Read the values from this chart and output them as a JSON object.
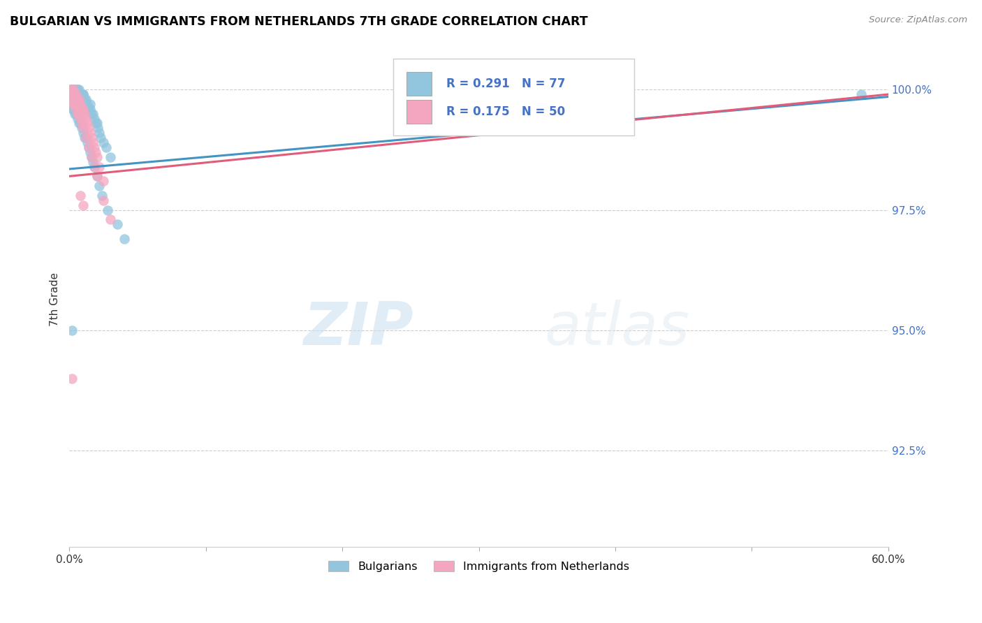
{
  "title": "BULGARIAN VS IMMIGRANTS FROM NETHERLANDS 7TH GRADE CORRELATION CHART",
  "source": "Source: ZipAtlas.com",
  "ylabel": "7th Grade",
  "ylabel_right_labels": [
    "100.0%",
    "97.5%",
    "95.0%",
    "92.5%"
  ],
  "ylabel_right_values": [
    1.0,
    0.975,
    0.95,
    0.925
  ],
  "xmin": 0.0,
  "xmax": 0.6,
  "ymin": 0.905,
  "ymax": 1.008,
  "blue_R": 0.291,
  "blue_N": 77,
  "pink_R": 0.175,
  "pink_N": 50,
  "blue_color": "#92c5de",
  "pink_color": "#f4a6c0",
  "blue_line_color": "#4393c3",
  "pink_line_color": "#e05c7a",
  "watermark_zip": "ZIP",
  "watermark_atlas": "atlas",
  "legend_label_blue": "Bulgarians",
  "legend_label_pink": "Immigrants from Netherlands",
  "blue_scatter_x": [
    0.001,
    0.001,
    0.002,
    0.002,
    0.002,
    0.003,
    0.003,
    0.003,
    0.003,
    0.004,
    0.004,
    0.004,
    0.005,
    0.005,
    0.005,
    0.006,
    0.006,
    0.006,
    0.007,
    0.007,
    0.007,
    0.008,
    0.008,
    0.008,
    0.009,
    0.009,
    0.01,
    0.01,
    0.01,
    0.01,
    0.011,
    0.011,
    0.012,
    0.012,
    0.013,
    0.013,
    0.014,
    0.015,
    0.015,
    0.016,
    0.017,
    0.018,
    0.019,
    0.02,
    0.021,
    0.022,
    0.023,
    0.025,
    0.027,
    0.03,
    0.001,
    0.002,
    0.003,
    0.004,
    0.005,
    0.006,
    0.007,
    0.008,
    0.009,
    0.01,
    0.011,
    0.012,
    0.013,
    0.014,
    0.015,
    0.016,
    0.017,
    0.018,
    0.02,
    0.022,
    0.024,
    0.028,
    0.035,
    0.04,
    0.35,
    0.58,
    0.002
  ],
  "blue_scatter_y": [
    0.999,
    1.0,
    0.999,
    1.0,
    0.999,
    1.0,
    0.999,
    1.0,
    0.999,
    1.0,
    0.999,
    0.998,
    0.999,
    1.0,
    0.999,
    0.999,
    1.0,
    0.999,
    0.999,
    1.0,
    0.998,
    0.999,
    0.998,
    0.997,
    0.998,
    0.999,
    0.999,
    0.998,
    0.997,
    0.999,
    0.998,
    0.997,
    0.997,
    0.998,
    0.997,
    0.996,
    0.996,
    0.996,
    0.997,
    0.995,
    0.995,
    0.994,
    0.993,
    0.993,
    0.992,
    0.991,
    0.99,
    0.989,
    0.988,
    0.986,
    0.997,
    0.996,
    0.996,
    0.995,
    0.995,
    0.994,
    0.993,
    0.993,
    0.992,
    0.991,
    0.99,
    0.99,
    0.989,
    0.988,
    0.987,
    0.986,
    0.985,
    0.984,
    0.982,
    0.98,
    0.978,
    0.975,
    0.972,
    0.969,
    0.999,
    0.999,
    0.95
  ],
  "pink_scatter_x": [
    0.001,
    0.002,
    0.002,
    0.003,
    0.003,
    0.004,
    0.004,
    0.005,
    0.005,
    0.006,
    0.006,
    0.007,
    0.007,
    0.008,
    0.008,
    0.009,
    0.01,
    0.01,
    0.011,
    0.012,
    0.013,
    0.014,
    0.015,
    0.016,
    0.017,
    0.018,
    0.019,
    0.02,
    0.022,
    0.025,
    0.002,
    0.003,
    0.004,
    0.005,
    0.006,
    0.007,
    0.008,
    0.009,
    0.01,
    0.012,
    0.014,
    0.016,
    0.018,
    0.02,
    0.025,
    0.03,
    0.008,
    0.01,
    0.28,
    0.002
  ],
  "pink_scatter_y": [
    1.0,
    0.999,
    1.0,
    0.999,
    1.0,
    0.999,
    0.998,
    0.999,
    0.998,
    0.998,
    0.997,
    0.997,
    0.998,
    0.997,
    0.996,
    0.996,
    0.996,
    0.995,
    0.995,
    0.994,
    0.993,
    0.992,
    0.991,
    0.99,
    0.989,
    0.988,
    0.987,
    0.986,
    0.984,
    0.981,
    0.998,
    0.997,
    0.997,
    0.996,
    0.995,
    0.995,
    0.994,
    0.993,
    0.992,
    0.99,
    0.988,
    0.986,
    0.984,
    0.982,
    0.977,
    0.973,
    0.978,
    0.976,
    0.999,
    0.94
  ],
  "blue_trendline_x": [
    0.0,
    0.6
  ],
  "blue_trendline_y": [
    0.9835,
    0.9985
  ],
  "pink_trendline_x": [
    0.0,
    0.6
  ],
  "pink_trendline_y": [
    0.982,
    0.999
  ]
}
